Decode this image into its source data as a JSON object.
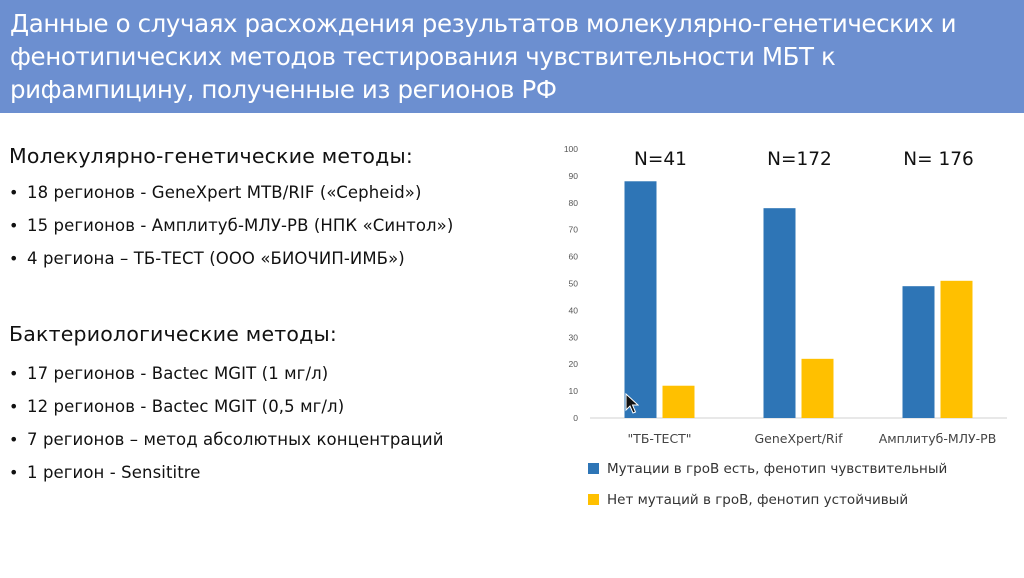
{
  "header": {
    "title": "Данные о случаях расхождения результатов молекулярно-генетических и фенотипических методов тестирования чувствительности МБТ к рифампицину, полученные из регионов РФ"
  },
  "molecular": {
    "heading": "Молекулярно-генетические методы:",
    "items": [
      "18 регионов  - GeneXpert MTB/RIF («Cepheid»)",
      "15 регионов  - Амплитуб-МЛУ-РВ (НПК «Синтол»)",
      "4 региона – ТБ-ТЕСТ (ООО «БИОЧИП-ИМБ»)"
    ]
  },
  "bacteriological": {
    "heading": "Бактериологические методы:",
    "items": [
      "17 регионов  - Bactec MGIT (1 мг/л)",
      "12 регионов  - Bactec MGIT (0,5 мг/л)",
      "7 регионов – метод абсолютных концентраций",
      "1 регион - Sensititre"
    ]
  },
  "chart_data": {
    "type": "bar",
    "categories": [
      "\"ТБ-ТЕСТ\"",
      "GeneXpert/Rif",
      "Амплитуб-МЛУ-РВ"
    ],
    "category_annotations": [
      "N=41",
      "N=172",
      "N= 176"
    ],
    "series": [
      {
        "name": "Мутации в гроВ есть, фенотип чувствительный",
        "values": [
          88,
          78,
          49
        ],
        "color": "#2e75b6"
      },
      {
        "name": "Нет мутаций в гроВ, фенотип устойчивый",
        "values": [
          12,
          22,
          51
        ],
        "color": "#ffc000"
      }
    ],
    "ylim": [
      0,
      100
    ],
    "yticks": [
      0,
      10,
      20,
      30,
      40,
      50,
      60,
      70,
      80,
      90,
      100
    ],
    "grid": false,
    "legend": "bottom"
  }
}
